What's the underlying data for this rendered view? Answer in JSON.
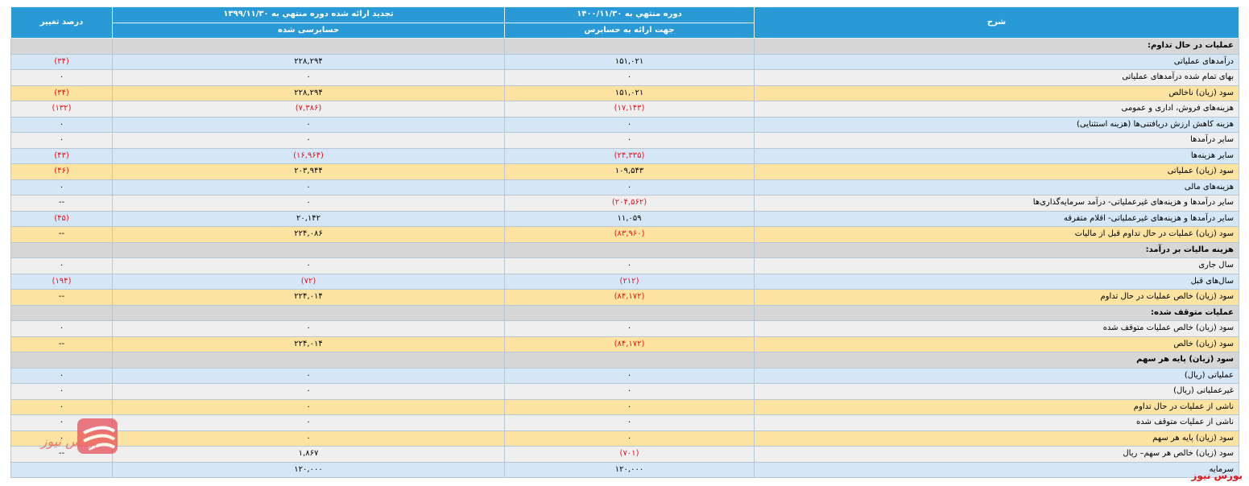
{
  "header": {
    "description": "شرح",
    "current": "دوره منتهي به ۱۴۰۰/۱۱/۳۰",
    "current_note": "جهت ارائه به حسابرس",
    "previous": "تجدید ارائه شده دوره منتهي به ۱۳۹۹/۱۱/۳۰",
    "previous_note": "حسابرسی شده",
    "change": "درصد تغییر",
    "color": "#2a9ad6"
  },
  "table": {
    "rows": [
      {
        "section": "عملیات در حال تداوم:",
        "color": "#d6d6d6"
      },
      {
        "cells": [
          "درآمدهای عملیاتی",
          "۱۵۱,۰۲۱",
          "۲۲۸,۲۹۴",
          "(۳۴)"
        ],
        "color": "#d5e6f7"
      },
      {
        "cells": [
          "بهای تمام شده درآمدهای عملیاتی",
          "۰",
          "۰",
          "۰"
        ],
        "color": "#efefef"
      },
      {
        "cells": [
          "سود (زیان) ناخالص",
          "۱۵۱,۰۲۱",
          "۲۲۸,۲۹۴",
          "(۳۴)"
        ],
        "color": "#fde3a1"
      },
      {
        "cells": [
          "هزینه‌های فروش، اداری و عمومی",
          "(۱۷,۱۴۳)",
          "(۷,۳۸۶)",
          "(۱۳۲)"
        ],
        "color": "#efefef"
      },
      {
        "cells": [
          "هزینه کاهش ارزش دریافتنی‌ها (هزینه استثنایی)",
          "۰",
          "۰",
          "۰"
        ],
        "color": "#d5e6f7"
      },
      {
        "cells": [
          "سایر درآمدها",
          "۰",
          "۰",
          "۰"
        ],
        "color": "#efefef"
      },
      {
        "cells": [
          "سایر هزینه‌ها",
          "(۲۴,۳۳۵)",
          "(۱۶,۹۶۴)",
          "(۴۳)"
        ],
        "color": "#d5e6f7"
      },
      {
        "cells": [
          "سود (زیان) عملیاتی",
          "۱۰۹,۵۴۳",
          "۲۰۳,۹۴۴",
          "(۴۶)"
        ],
        "color": "#fde3a1"
      },
      {
        "cells": [
          "هزینه‌های مالی",
          "۰",
          "۰",
          "۰"
        ],
        "color": "#d5e6f7"
      },
      {
        "cells": [
          "سایر درآمدها و هزینه‌های غیرعملیاتی- درآمد سرمایه‌گذاری‌ها",
          "(۲۰۴,۵۶۲)",
          "۰",
          "--"
        ],
        "color": "#efefef"
      },
      {
        "cells": [
          "سایر درآمدها و هزینه‌های غیرعملیاتی- اقلام متفرقه",
          "۱۱,۰۵۹",
          "۲۰,۱۴۲",
          "(۴۵)"
        ],
        "color": "#d5e6f7"
      },
      {
        "cells": [
          "سود (زیان) عملیات در حال تداوم قبل از مالیات",
          "(۸۳,۹۶۰)",
          "۲۲۴,۰۸۶",
          "--"
        ],
        "color": "#fde3a1"
      },
      {
        "section": "هزینه مالیات بر درآمد:",
        "color": "#d6d6d6"
      },
      {
        "cells": [
          "سال جاری",
          "۰",
          "۰",
          "۰"
        ],
        "color": "#efefef"
      },
      {
        "cells": [
          "سال‌های قبل",
          "(۲۱۲)",
          "(۷۲)",
          "(۱۹۴)"
        ],
        "color": "#d5e6f7"
      },
      {
        "cells": [
          "سود (زیان) خالص عملیات در حال تداوم",
          "(۸۴,۱۷۲)",
          "۲۲۴,۰۱۴",
          "--"
        ],
        "color": "#fde3a1"
      },
      {
        "section": "عملیات متوقف شده:",
        "color": "#d6d6d6"
      },
      {
        "cells": [
          "سود (زیان) خالص عملیات متوقف شده",
          "۰",
          "۰",
          "۰"
        ],
        "color": "#efefef"
      },
      {
        "cells": [
          "سود (زیان) خالص",
          "(۸۴,۱۷۲)",
          "۲۲۴,۰۱۴",
          "--"
        ],
        "color": "#fde3a1"
      },
      {
        "section": "سود (زیان) پایه هر سهم",
        "color": "#d6d6d6"
      },
      {
        "cells": [
          "عملیاتی (ریال)",
          "۰",
          "۰",
          "۰"
        ],
        "color": "#d5e6f7"
      },
      {
        "cells": [
          "غیرعملیاتی (ریال)",
          "۰",
          "۰",
          "۰"
        ],
        "color": "#efefef"
      },
      {
        "cells": [
          "ناشی از عملیات در حال تداوم",
          "۰",
          "۰",
          "۰"
        ],
        "color": "#fde3a1"
      },
      {
        "cells": [
          "ناشی از عملیات متوقف شده",
          "۰",
          "۰",
          "۰"
        ],
        "color": "#efefef"
      },
      {
        "cells": [
          "سود (زیان) پایه هر سهم",
          "۰",
          "۰",
          "۰"
        ],
        "color": "#fde3a1"
      },
      {
        "cells": [
          "سود (زیان) خالص هر سهم– ریال",
          "(۷۰۱)",
          "۱,۸۶۷",
          "--"
        ],
        "color": "#efefef"
      },
      {
        "cells": [
          "سرمایه",
          "۱۲۰,۰۰۰",
          "۱۲۰,۰۰۰"
        ],
        "color": "#d5e6f7"
      }
    ]
  },
  "watermark": "بورس نیوز"
}
